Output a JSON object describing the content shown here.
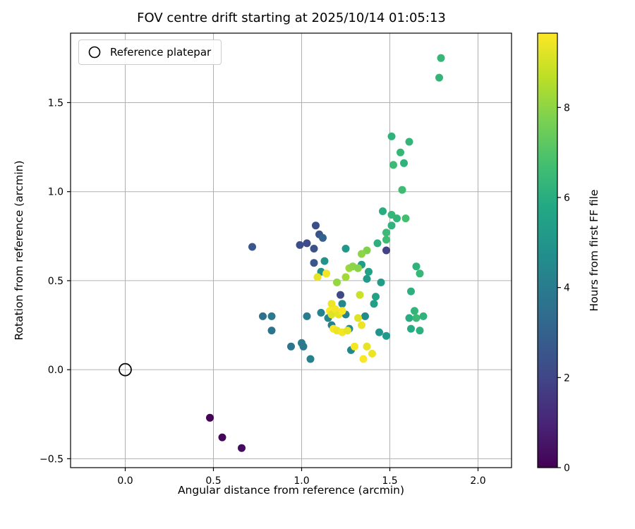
{
  "colors": {
    "background": "#ffffff",
    "spine": "#000000",
    "grid": "#b0b0b0",
    "text": "#000000"
  },
  "chart_data": {
    "type": "scatter",
    "title": "FOV centre drift starting at 2025/10/14 01:05:13",
    "xlabel": "Angular distance from reference (arcmin)",
    "ylabel": "Rotation from reference (arcmin)",
    "xlim": [
      -0.31,
      2.19
    ],
    "ylim": [
      -0.55,
      1.89
    ],
    "xticks": [
      0.0,
      0.5,
      1.0,
      1.5,
      2.0
    ],
    "xtick_labels": [
      "0.0",
      "0.5",
      "1.0",
      "1.5",
      "2.0"
    ],
    "yticks": [
      -0.5,
      0.0,
      0.5,
      1.0,
      1.5
    ],
    "ytick_labels": [
      "−0.5",
      "0.0",
      "0.5",
      "1.0",
      "1.5"
    ],
    "grid": true,
    "legend": {
      "label": "Reference platepar",
      "position": "upper left",
      "marker": "open-circle"
    },
    "reference_point": [
      0.0,
      0.0
    ],
    "colorbar": {
      "label": "Hours from first FF file",
      "vmin": 0,
      "vmax": 9.65,
      "ticks": [
        0,
        2,
        4,
        6,
        8
      ],
      "tick_labels": [
        "0",
        "2",
        "4",
        "6",
        "8"
      ],
      "colormap": "viridis",
      "viridis_stops": [
        "#440154",
        "#482475",
        "#414487",
        "#355f8d",
        "#2a788e",
        "#21918c",
        "#22a884",
        "#44bf70",
        "#7ad151",
        "#bddf26",
        "#fde725"
      ]
    },
    "points_format": [
      "angular_distance_arcmin",
      "rotation_arcmin",
      "hours_from_first_ff"
    ],
    "points": [
      [
        0.48,
        -0.27,
        0.05
      ],
      [
        0.55,
        -0.38,
        0.15
      ],
      [
        0.66,
        -0.44,
        0.3
      ],
      [
        0.72,
        0.69,
        2.6
      ],
      [
        0.99,
        0.7,
        2.3
      ],
      [
        1.03,
        0.71,
        2.2
      ],
      [
        1.07,
        0.68,
        2.4
      ],
      [
        1.08,
        0.81,
        2.3
      ],
      [
        1.1,
        0.76,
        2.5
      ],
      [
        1.12,
        0.74,
        3.0
      ],
      [
        1.07,
        0.6,
        2.6
      ],
      [
        1.48,
        0.67,
        1.9
      ],
      [
        1.22,
        0.42,
        2.1
      ],
      [
        0.78,
        0.3,
        3.6
      ],
      [
        0.83,
        0.3,
        3.9
      ],
      [
        0.83,
        0.22,
        3.7
      ],
      [
        0.94,
        0.13,
        3.8
      ],
      [
        1.0,
        0.15,
        4.0
      ],
      [
        1.01,
        0.13,
        3.9
      ],
      [
        1.03,
        0.3,
        4.1
      ],
      [
        1.05,
        0.06,
        4.2
      ],
      [
        1.11,
        0.32,
        4.3
      ],
      [
        1.15,
        0.29,
        4.4
      ],
      [
        1.17,
        0.25,
        4.2
      ],
      [
        1.23,
        0.37,
        4.4
      ],
      [
        1.25,
        0.31,
        4.3
      ],
      [
        1.27,
        0.23,
        4.5
      ],
      [
        1.28,
        0.11,
        4.4
      ],
      [
        1.36,
        0.3,
        4.6
      ],
      [
        1.44,
        0.21,
        5.0
      ],
      [
        1.48,
        0.19,
        5.2
      ],
      [
        1.11,
        0.55,
        5.0
      ],
      [
        1.13,
        0.61,
        4.9
      ],
      [
        1.25,
        0.68,
        5.1
      ],
      [
        1.34,
        0.59,
        5.3
      ],
      [
        1.37,
        0.51,
        5.2
      ],
      [
        1.38,
        0.55,
        5.5
      ],
      [
        1.41,
        0.37,
        5.4
      ],
      [
        1.42,
        0.41,
        5.6
      ],
      [
        1.45,
        0.49,
        5.3
      ],
      [
        1.79,
        1.75,
        6.4
      ],
      [
        1.78,
        1.64,
        6.3
      ],
      [
        1.51,
        1.31,
        6.2
      ],
      [
        1.56,
        1.22,
        6.4
      ],
      [
        1.61,
        1.28,
        6.3
      ],
      [
        1.52,
        1.15,
        6.5
      ],
      [
        1.58,
        1.16,
        6.2
      ],
      [
        1.57,
        1.01,
        6.6
      ],
      [
        1.51,
        0.87,
        6.4
      ],
      [
        1.59,
        0.85,
        6.7
      ],
      [
        1.54,
        0.85,
        6.3
      ],
      [
        1.48,
        0.77,
        6.5
      ],
      [
        1.51,
        0.81,
        6.2
      ],
      [
        1.46,
        0.89,
        6.0
      ],
      [
        1.43,
        0.71,
        6.1
      ],
      [
        1.48,
        0.73,
        6.6
      ],
      [
        1.65,
        0.58,
        6.2
      ],
      [
        1.67,
        0.54,
        6.4
      ],
      [
        1.62,
        0.44,
        6.1
      ],
      [
        1.64,
        0.33,
        6.3
      ],
      [
        1.61,
        0.29,
        6.0
      ],
      [
        1.65,
        0.29,
        6.5
      ],
      [
        1.69,
        0.3,
        6.2
      ],
      [
        1.62,
        0.23,
        5.9
      ],
      [
        1.67,
        0.22,
        6.1
      ],
      [
        1.27,
        0.57,
        8.2
      ],
      [
        1.29,
        0.58,
        8.0
      ],
      [
        1.32,
        0.57,
        7.9
      ],
      [
        1.25,
        0.52,
        8.3
      ],
      [
        1.2,
        0.49,
        8.1
      ],
      [
        1.37,
        0.67,
        7.8
      ],
      [
        1.34,
        0.65,
        8.0
      ],
      [
        1.09,
        0.52,
        9.3
      ],
      [
        1.14,
        0.54,
        9.5
      ],
      [
        1.17,
        0.37,
        9.4
      ],
      [
        1.16,
        0.33,
        9.6
      ],
      [
        1.17,
        0.31,
        9.2
      ],
      [
        1.19,
        0.34,
        9.5
      ],
      [
        1.21,
        0.31,
        9.3
      ],
      [
        1.18,
        0.23,
        9.6
      ],
      [
        1.2,
        0.22,
        9.4
      ],
      [
        1.23,
        0.21,
        9.5
      ],
      [
        1.26,
        0.22,
        9.3
      ],
      [
        1.23,
        0.33,
        9.6
      ],
      [
        1.32,
        0.29,
        9.2
      ],
      [
        1.34,
        0.25,
        9.4
      ],
      [
        1.3,
        0.13,
        9.5
      ],
      [
        1.37,
        0.13,
        9.3
      ],
      [
        1.35,
        0.06,
        9.6
      ],
      [
        1.4,
        0.09,
        9.4
      ],
      [
        1.33,
        0.42,
        8.9
      ]
    ]
  }
}
